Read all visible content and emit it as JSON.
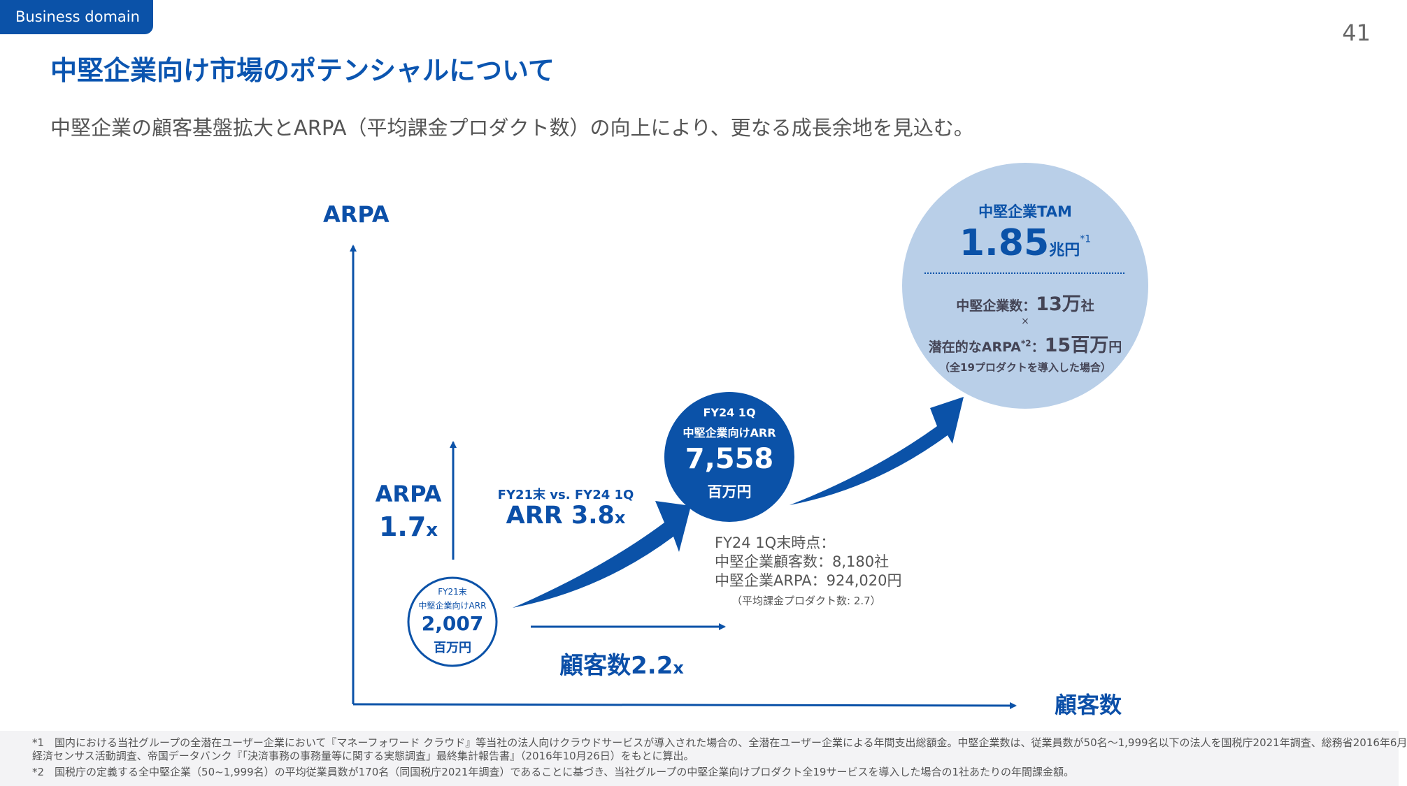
{
  "header": {
    "badge": "Business domain",
    "page_number": "41",
    "title": "中堅企業向け市場のポテンシャルについて",
    "subtitle": "中堅企業の顧客基盤拡大とARPA（平均課金プロダクト数）の向上により、更なる成長余地を見込む。"
  },
  "colors": {
    "primary": "#0b52a8",
    "tam_circle": "#b9cfe8",
    "footnote_bg": "#f3f3f5"
  },
  "axes": {
    "y_label": "ARPA",
    "x_label": "顧客数"
  },
  "start": {
    "period": "FY21末",
    "label": "中堅企業向けARR",
    "value": "2,007",
    "unit": "百万円"
  },
  "current": {
    "period": "FY24 1Q",
    "label": "中堅企業向けARR",
    "value": "7,558",
    "unit": "百万円"
  },
  "growth": {
    "arpa_label": "ARPA",
    "arpa_value": "1.7",
    "arpa_suffix": "x",
    "arr_compare": "FY21末 vs. FY24 1Q",
    "arr_value": "ARR 3.8",
    "arr_suffix": "x",
    "customers_value": "顧客数2.2",
    "customers_suffix": "x"
  },
  "status": {
    "line1": "FY24 1Q末時点：",
    "line2": "中堅企業顧客数：8,180社",
    "line3": "中堅企業ARPA：924,020円",
    "note": "（平均課金プロダクト数: 2.7）"
  },
  "tam": {
    "title": "中堅企業TAM",
    "value": "1.85",
    "unit": "兆円",
    "note_mark": "*1",
    "companies_label": "中堅企業数：",
    "companies_value": "13万",
    "companies_unit": "社",
    "times": "×",
    "arpa_label": "潜在的なARPA",
    "arpa_mark": "*2",
    "arpa_sep": "：",
    "arpa_value": "15百万",
    "arpa_unit": "円",
    "arpa_note": "（全19プロダクトを導入した場合）"
  },
  "footnotes": {
    "n1_line1": "*1　国内における当社グループの全潜在ユーザー企業において『マネーフォワード クラウド』等当社の法人向けクラウドサービスが導入された場合の、全潜在ユーザー企業による年間支出総額金。中堅企業数は、従業員数が50名～1,999名以下の法人を国税庁2021年調査、総務省2016年6月",
    "n1_line2": "経済センサス活動調査、帝国データバンク『「決済事務の事務量等に関する実態調査」最終集計報告書』（2016年10月26日）をもとに算出。",
    "n2": "*2　国税庁の定義する全中堅企業（50~1,999名）の平均従業員数が170名（同国税庁2021年調査）であることに基づき、当社グループの中堅企業向けプロダクト全19サービスを導入した場合の1社あたりの年間課金額。"
  }
}
